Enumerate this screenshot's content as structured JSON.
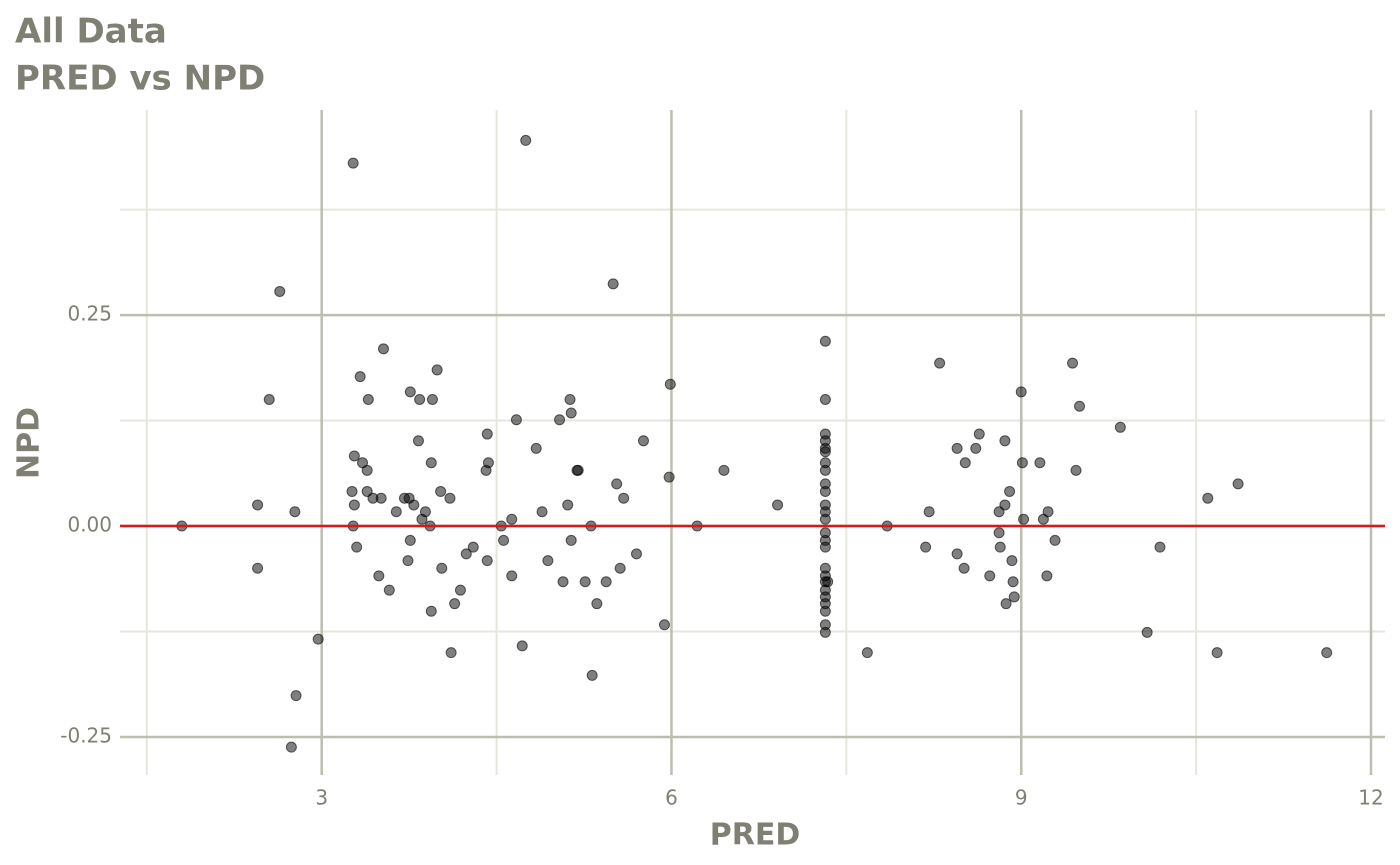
{
  "chart_data": {
    "type": "scatter",
    "title": "All Data",
    "subtitle": "PRED vs NPD",
    "x_label": "PRED",
    "y_label": "NPD",
    "xlim": [
      1.27,
      12.12
    ],
    "ylim": [
      -0.295,
      0.493
    ],
    "xticks": [
      3,
      6,
      9,
      12
    ],
    "yticks": [
      {
        "value": -0.25,
        "label": "-0.25"
      },
      {
        "value": 0,
        "label": "0.00"
      },
      {
        "value": 0.25,
        "label": "0.25"
      }
    ],
    "minor_xticks": [
      1.5,
      4.5,
      7.5,
      10.5
    ],
    "minor_yticks": [
      -0.125,
      0.125,
      0.375
    ],
    "grid": true,
    "color": "#000000",
    "opacity": 0.5,
    "reference_line": {
      "y": 0,
      "color": "#d7191c"
    },
    "x": [
      1.8,
      2.45,
      2.45,
      2.55,
      2.64,
      2.77,
      2.78,
      2.74,
      2.97,
      3.27,
      3.26,
      3.28,
      3.27,
      3.3,
      3.28,
      3.33,
      3.35,
      3.39,
      3.39,
      3.4,
      3.44,
      3.49,
      3.51,
      3.53,
      3.58,
      3.64,
      3.71,
      3.74,
      3.75,
      3.76,
      3.76,
      3.79,
      3.83,
      3.84,
      3.86,
      3.89,
      3.93,
      3.94,
      3.94,
      3.95,
      3.99,
      4.02,
      4.03,
      4.1,
      4.11,
      4.14,
      4.19,
      4.24,
      4.3,
      4.41,
      4.42,
      4.42,
      4.43,
      4.54,
      4.56,
      4.63,
      4.63,
      4.67,
      4.72,
      4.75,
      4.84,
      4.89,
      4.94,
      5.04,
      5.07,
      5.11,
      5.13,
      5.14,
      5.14,
      5.19,
      5.2,
      5.26,
      5.31,
      5.32,
      5.36,
      5.44,
      5.5,
      5.53,
      5.56,
      5.59,
      5.7,
      5.76,
      5.94,
      5.98,
      5.99,
      6.22,
      6.45,
      6.91,
      7.32,
      7.32,
      7.32,
      7.32,
      7.32,
      7.32,
      7.32,
      7.32,
      7.32,
      7.32,
      7.32,
      7.32,
      7.32,
      7.32,
      7.32,
      7.32,
      7.32,
      7.32,
      7.32,
      7.32,
      7.32,
      7.32,
      7.32,
      7.32,
      7.32,
      7.34,
      7.68,
      7.85,
      8.18,
      8.21,
      8.3,
      8.45,
      8.45,
      8.51,
      8.52,
      8.61,
      8.64,
      8.73,
      8.81,
      8.81,
      8.82,
      8.86,
      8.86,
      8.87,
      8.9,
      8.92,
      8.93,
      8.94,
      9.0,
      9.01,
      9.02,
      9.16,
      9.19,
      9.22,
      9.23,
      9.29,
      9.44,
      9.47,
      9.5,
      9.85,
      10.08,
      10.19,
      10.6,
      10.68,
      10.86,
      11.62
    ],
    "values": [
      0,
      0.025,
      -0.05,
      0.15,
      0.278,
      0.017,
      -0.201,
      -0.262,
      -0.134,
      0.43,
      0.041,
      0.025,
      0,
      -0.025,
      0.083,
      0.177,
      0.075,
      0.066,
      0.041,
      0.15,
      0.033,
      -0.059,
      0.033,
      0.21,
      -0.076,
      0.017,
      0.033,
      -0.041,
      0.033,
      -0.017,
      0.159,
      0.025,
      0.101,
      0.15,
      0.008,
      0.017,
      0,
      -0.101,
      0.075,
      0.15,
      0.185,
      0.041,
      -0.05,
      0.033,
      -0.15,
      -0.092,
      -0.076,
      -0.033,
      -0.025,
      0.066,
      -0.041,
      0.109,
      0.075,
      0,
      -0.017,
      0.008,
      -0.059,
      0.126,
      -0.142,
      0.457,
      0.092,
      0.017,
      -0.041,
      0.126,
      -0.066,
      0.025,
      0.15,
      0.134,
      -0.017,
      0.066,
      0.066,
      -0.066,
      0,
      -0.177,
      -0.092,
      -0.066,
      0.287,
      0.05,
      -0.05,
      0.033,
      -0.033,
      0.101,
      -0.117,
      0.058,
      0.168,
      0,
      0.066,
      0.025,
      0.219,
      0.15,
      0.109,
      0.101,
      0.092,
      0.088,
      0.075,
      0.066,
      0.05,
      0.041,
      0.025,
      0.017,
      0.008,
      -0.008,
      -0.017,
      -0.025,
      -0.05,
      -0.059,
      -0.066,
      -0.076,
      -0.084,
      -0.092,
      -0.101,
      -0.117,
      -0.126,
      -0.066,
      -0.15,
      0,
      -0.025,
      0.017,
      0.193,
      -0.033,
      0.092,
      -0.05,
      0.075,
      0.092,
      0.109,
      -0.059,
      -0.008,
      0.017,
      -0.025,
      0.101,
      0.025,
      -0.092,
      0.041,
      -0.041,
      -0.066,
      -0.084,
      0.159,
      0.075,
      0.008,
      0.075,
      0.008,
      -0.059,
      0.017,
      -0.017,
      0.193,
      0.066,
      0.142,
      0.117,
      -0.126,
      -0.025,
      0.033,
      -0.15,
      0.05,
      -0.15
    ]
  }
}
